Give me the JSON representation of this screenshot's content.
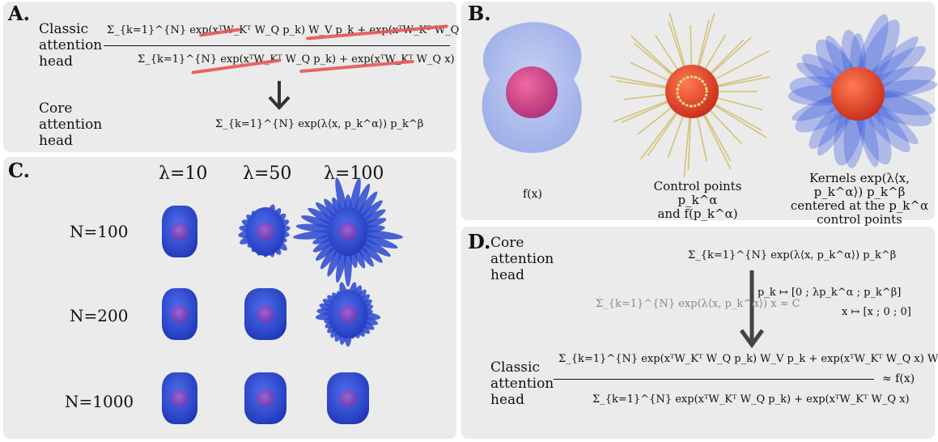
{
  "panelA": {
    "label": "A.",
    "classic_label": "Classic attention head",
    "classic_lines": [
      "Classic",
      "attention",
      "head"
    ],
    "core_lines": [
      "Core",
      "attention",
      "head"
    ],
    "numerator": "Σ_{k=1}^{N} exp(xᵀW_Kᵀ W_Q p_k) W_V p_k + exp(xᵀW_Kᵀ W_Q x) W_V x",
    "denominator": "Σ_{k=1}^{N} exp(xᵀW_Kᵀ W_Q p_k) + exp(xᵀW_Kᵀ W_Q x)",
    "core_expr": "Σ_{k=1}^{N} exp(λ⟨x, p_k^α⟩) p_k^β"
  },
  "panelB": {
    "label": "B.",
    "cap1": "f(x)",
    "cap2_lines": [
      "Control points p_k^α",
      "and f(p_k^α)"
    ],
    "cap3_lines": [
      "Kernels exp(λ⟨x, p_k^α⟩) p_k^β",
      "centered at the p_k^α",
      "control points"
    ]
  },
  "panelC": {
    "label": "C.",
    "col_headers": [
      "λ=10",
      "λ=50",
      "λ=100"
    ],
    "row_headers": [
      "N=100",
      "N=200",
      "N=1000"
    ]
  },
  "panelD": {
    "label": "D.",
    "core_lines": [
      "Core",
      "attention",
      "head"
    ],
    "classic_lines": [
      "Classic",
      "attention",
      "head"
    ],
    "core_expr": "Σ_{k=1}^{N} exp(λ⟨x, p_k^α⟩) p_k^β",
    "approx_expr": "Σ_{k=1}^{N} exp(λ⟨x, p_k^α⟩) x ≈ C",
    "map_p": "p_k ↦ [0 ; λp_k^α ; p_k^β]",
    "map_x": "x ↦ [x ; 0 ; 0]",
    "numerator": "Σ_{k=1}^{N} exp(xᵀW_Kᵀ W_Q p_k) W_V p_k + exp(xᵀW_Kᵀ W_Q x) W_V x",
    "denominator": "Σ_{k=1}^{N} exp(xᵀW_Kᵀ W_Q p_k) + exp(xᵀW_Kᵀ W_Q x)",
    "approx_fx": "≈ f(x)"
  },
  "colors": {
    "panel_bg": "#ebebeb",
    "strike": "#e85555",
    "blob_blue": "#2f4fd6",
    "light_blue": "#9fb0ec",
    "inner_purple": "#8a4fc4",
    "sphere_red": "#e0452c",
    "spike_gold": "#d4c27a"
  }
}
